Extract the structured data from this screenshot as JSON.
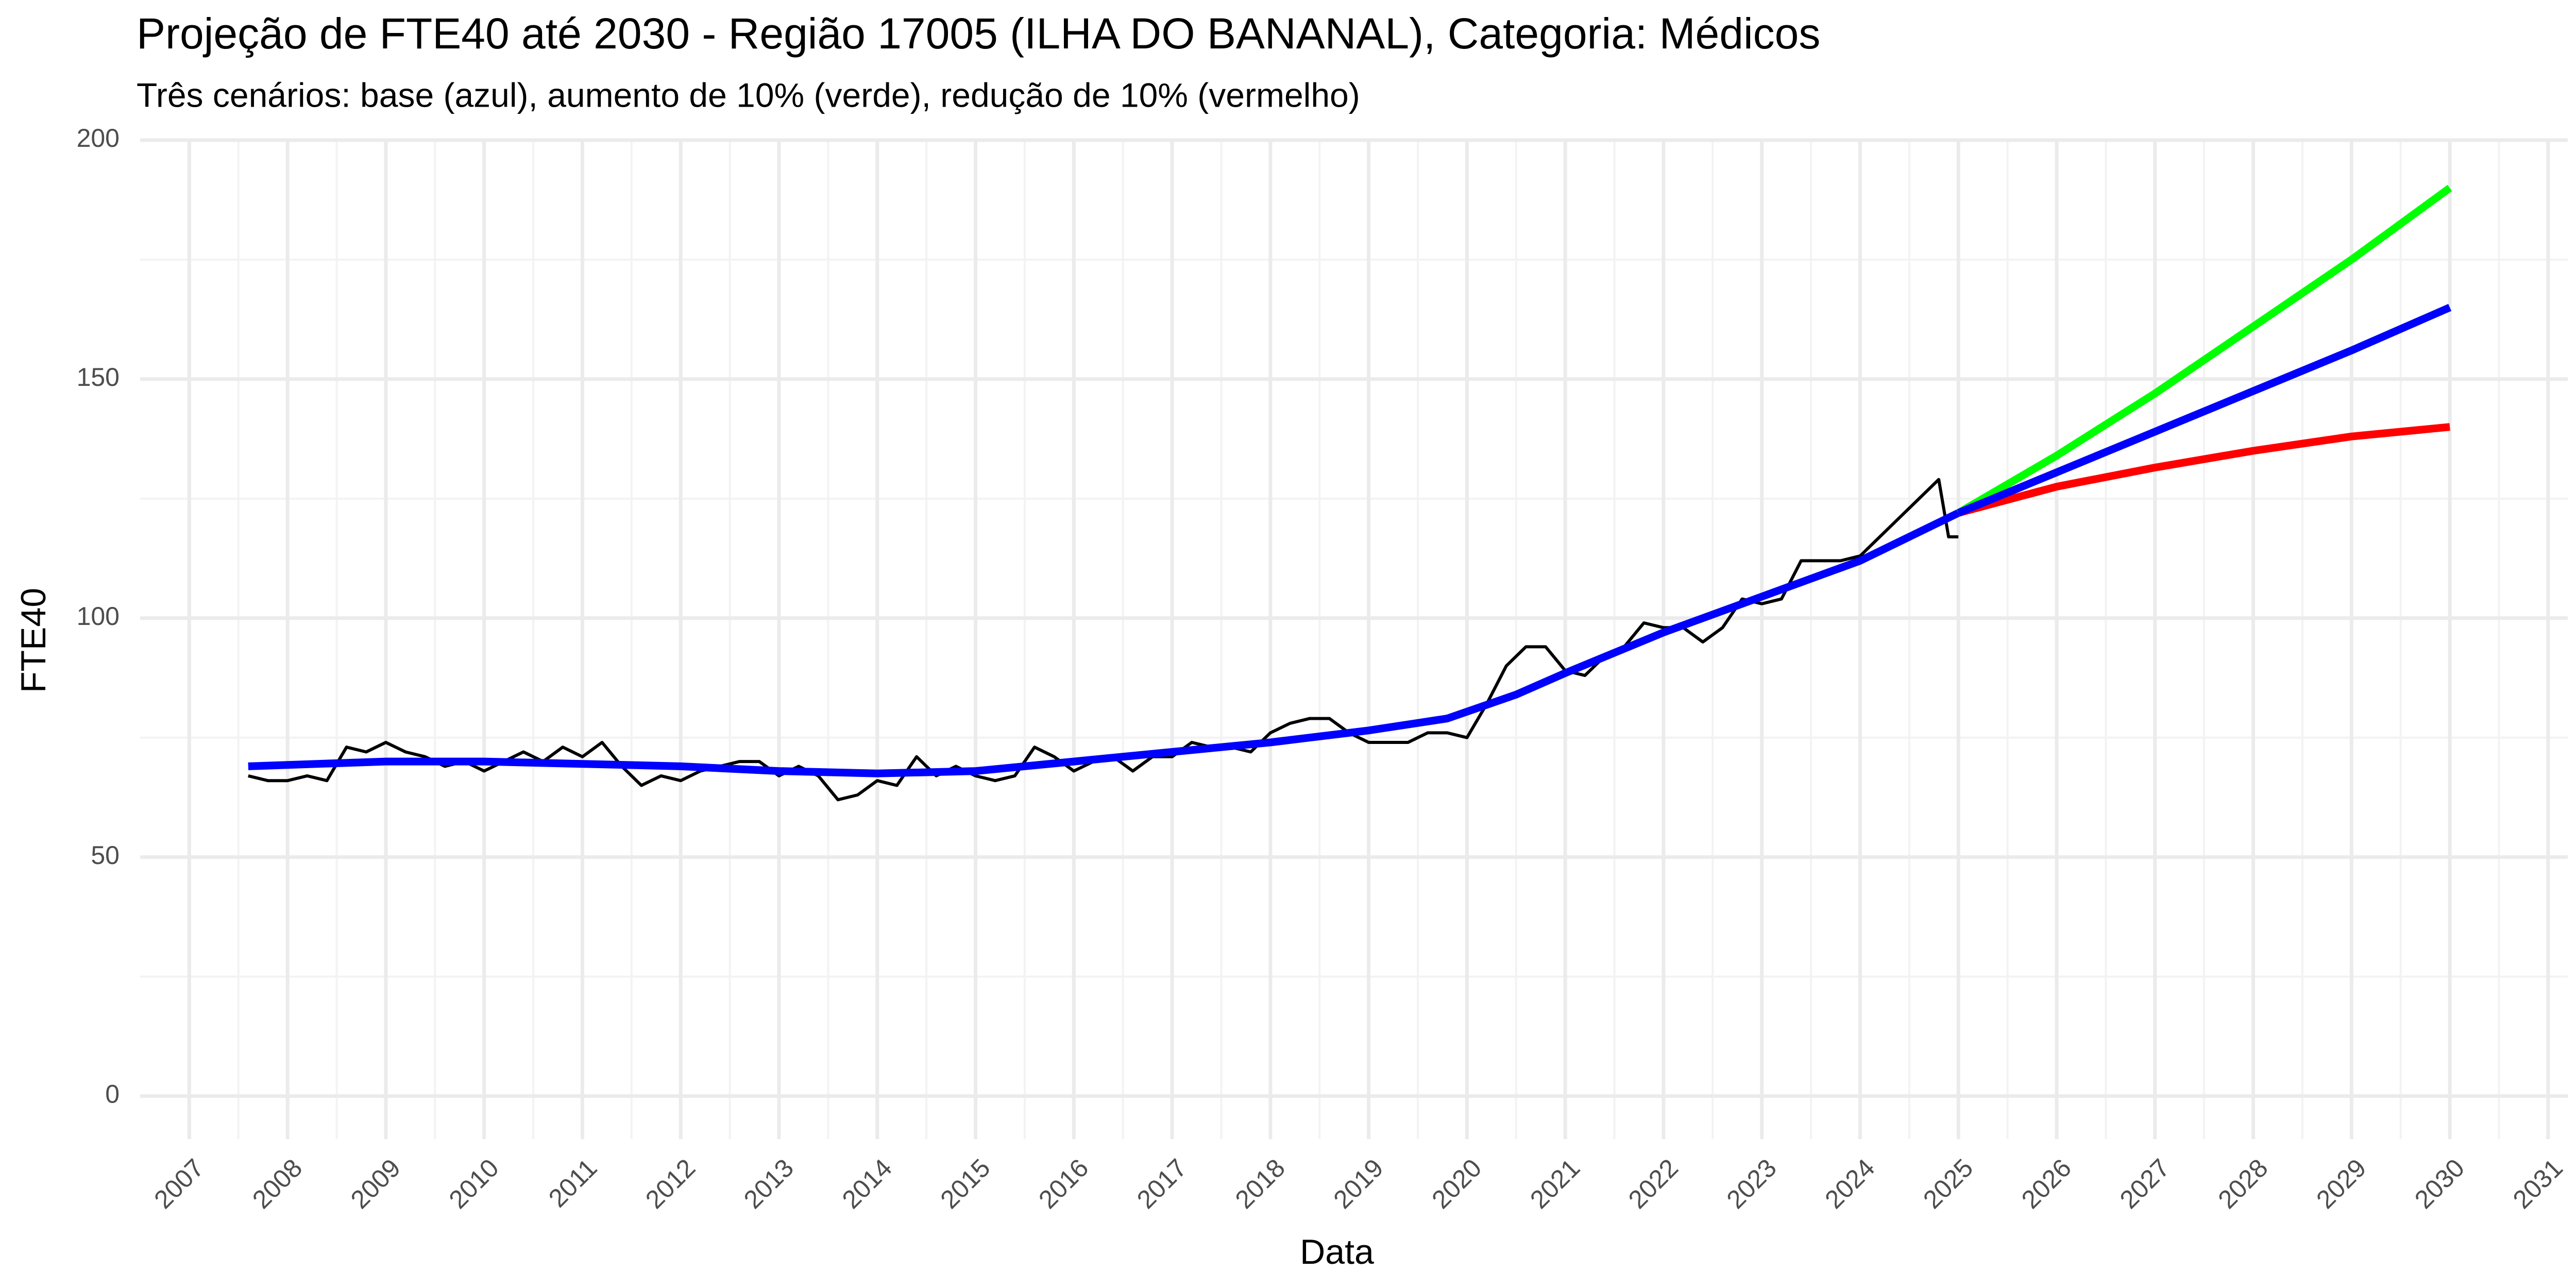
{
  "chart_data": {
    "type": "line",
    "title": "Projeção de FTE40 até 2030 - Região 17005 (ILHA DO BANANAL), Categoria: Médicos",
    "subtitle": "Três cenários: base (azul), aumento de 10% (verde), redução de 10% (vermelho)",
    "x_label": "Data",
    "y_label": "FTE40",
    "xlim": [
      2006.5,
      2031.2
    ],
    "ylim": [
      -9,
      200
    ],
    "xticks": [
      2007,
      2008,
      2009,
      2010,
      2011,
      2012,
      2013,
      2014,
      2015,
      2016,
      2017,
      2018,
      2019,
      2020,
      2021,
      2022,
      2023,
      2024,
      2025,
      2026,
      2027,
      2028,
      2029,
      2030,
      2031
    ],
    "yticks": [
      0,
      50,
      100,
      150,
      200
    ],
    "grid": true,
    "series": [
      {
        "color": "#000000",
        "x": [
          2007.6,
          2007.8,
          2008.0,
          2008.2,
          2008.4,
          2008.6,
          2008.8,
          2009.0,
          2009.2,
          2009.4,
          2009.6,
          2009.8,
          2010.0,
          2010.2,
          2010.4,
          2010.6,
          2010.8,
          2011.0,
          2011.2,
          2011.4,
          2011.6,
          2011.8,
          2012.0,
          2012.2,
          2012.4,
          2012.6,
          2012.8,
          2013.0,
          2013.2,
          2013.4,
          2013.6,
          2013.8,
          2014.0,
          2014.2,
          2014.4,
          2014.6,
          2014.8,
          2015.0,
          2015.2,
          2015.4,
          2015.6,
          2015.8,
          2016.0,
          2016.2,
          2016.4,
          2016.6,
          2016.8,
          2017.0,
          2017.2,
          2017.4,
          2017.6,
          2017.8,
          2018.0,
          2018.2,
          2018.4,
          2018.6,
          2018.8,
          2019.0,
          2019.2,
          2019.4,
          2019.6,
          2019.8,
          2020.0,
          2020.2,
          2020.4,
          2020.6,
          2020.8,
          2021.0,
          2021.2,
          2021.4,
          2021.6,
          2021.8,
          2022.0,
          2022.2,
          2022.4,
          2022.6,
          2022.8,
          2023.0,
          2023.2,
          2023.4,
          2023.6,
          2023.8,
          2024.0,
          2024.2,
          2024.4,
          2024.6,
          2024.8,
          2024.9,
          2025.0
        ],
        "values": [
          67,
          66,
          66,
          67,
          66,
          73,
          72,
          74,
          72,
          71,
          69,
          70,
          68,
          70,
          72,
          70,
          73,
          71,
          74,
          69,
          65,
          67,
          66,
          68,
          69,
          70,
          70,
          67,
          69,
          67,
          62,
          63,
          66,
          65,
          71,
          67,
          69,
          67,
          66,
          67,
          73,
          71,
          68,
          70,
          71,
          68,
          71,
          71,
          74,
          73,
          73,
          72,
          76,
          78,
          79,
          79,
          76,
          74,
          74,
          74,
          76,
          76,
          75,
          82,
          90,
          94,
          94,
          89,
          88,
          92,
          94,
          99,
          98,
          98,
          95,
          98,
          104,
          103,
          104,
          112,
          112,
          112,
          113,
          117,
          121,
          125,
          129,
          117,
          117
        ]
      },
      {
        "color": "#0000ff",
        "x": [
          2007.6,
          2009,
          2010,
          2011,
          2012,
          2013,
          2014,
          2015,
          2016,
          2017,
          2018,
          2019,
          2019.8,
          2020.5,
          2021,
          2022,
          2023,
          2024,
          2025
        ],
        "values": [
          69,
          70,
          70,
          69.5,
          69,
          68,
          67.5,
          68,
          70,
          72,
          74,
          76.5,
          79,
          84,
          88.5,
          97,
          104.5,
          112,
          122
        ]
      },
      {
        "color": "#00ff00",
        "x": [
          2025,
          2026,
          2027,
          2028,
          2029,
          2030
        ],
        "values": [
          122,
          134,
          147,
          161,
          175,
          190
        ]
      },
      {
        "color": "#ff0000",
        "x": [
          2025,
          2026,
          2027,
          2028,
          2029,
          2030
        ],
        "values": [
          122,
          127.5,
          131.5,
          135,
          138,
          140
        ]
      },
      {
        "color": "#0000ff",
        "x": [
          2025,
          2026,
          2027,
          2028,
          2029,
          2030
        ],
        "values": [
          122,
          130.5,
          139,
          147.5,
          156,
          165
        ]
      }
    ]
  }
}
